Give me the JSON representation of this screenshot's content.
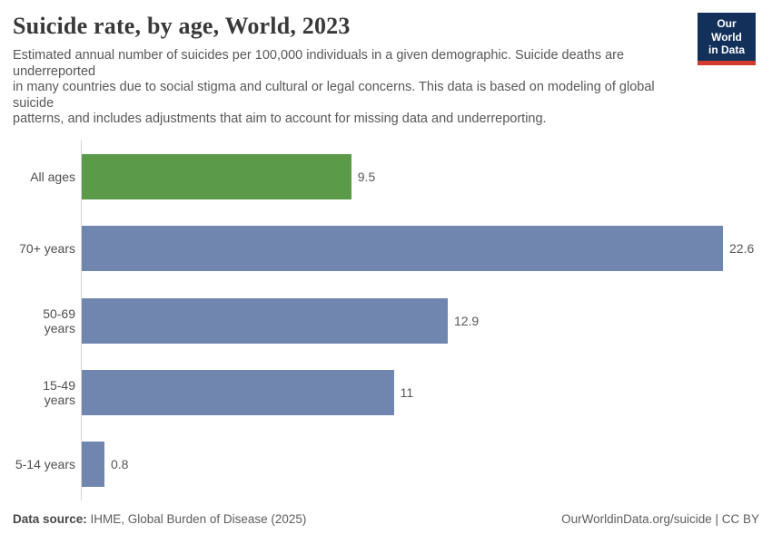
{
  "header": {
    "title": "Suicide rate, by age, World, 2023",
    "logo": {
      "line1": "Our World",
      "line2": "in Data"
    }
  },
  "subtitle_lines": [
    "Estimated annual number of suicides per 100,000 individuals in a given demographic. Suicide deaths are",
    "underreported",
    "in many countries due to social stigma and cultural or legal concerns. This data is based on modeling of global",
    "suicide",
    "patterns, and includes adjustments that aim to account for missing data and underreporting."
  ],
  "chart_data": {
    "type": "bar",
    "orientation": "horizontal",
    "title": "Suicide rate, by age, World, 2023",
    "xlabel": "",
    "ylabel": "",
    "categories": [
      "All ages",
      "70+ years",
      "50-69 years",
      "15-49 years",
      "5-14 years"
    ],
    "values": [
      9.5,
      22.6,
      12.9,
      11,
      0.8
    ],
    "value_labels": [
      "9.5",
      "22.6",
      "12.9",
      "11",
      "0.8"
    ],
    "bar_colors": [
      "#5A9A48",
      "#7086AF",
      "#7086AF",
      "#7086AF",
      "#7086AF"
    ],
    "xlim": [
      0,
      22.6
    ],
    "grid": false,
    "legend": "none"
  },
  "footer": {
    "source_label": "Data source:",
    "source_value": "IHME, Global Burden of Disease (2025)",
    "rights": "OurWorldinData.org/suicide | CC BY"
  },
  "colors": {
    "highlight_bar": "#5A9A48",
    "default_bar": "#7086AF",
    "axis_line": "#d7d7d7",
    "logo_background": "#12305A",
    "logo_accent": "#D23B2C",
    "title_text": "#383838",
    "body_text": "#575757"
  }
}
